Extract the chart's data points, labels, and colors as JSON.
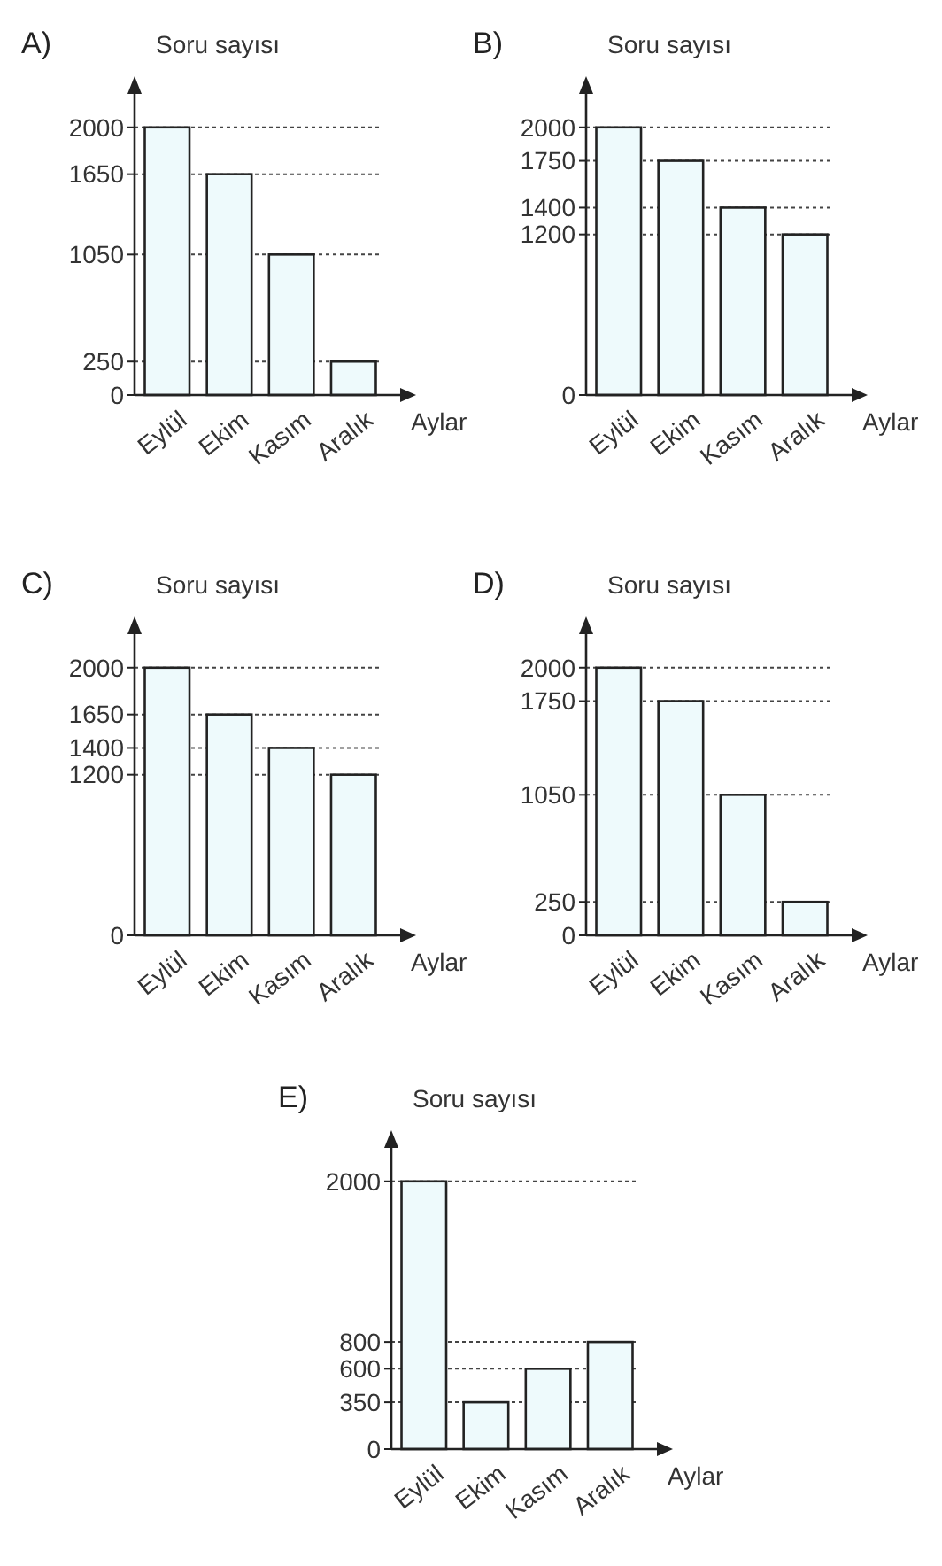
{
  "chart_data": [
    {
      "type": "bar",
      "title": "A)",
      "ylabel": "Soru sayısı",
      "xlabel": "Aylar",
      "categories": [
        "Eylül",
        "Ekim",
        "Kasım",
        "Aralık"
      ],
      "values": [
        2000,
        1650,
        1050,
        250
      ],
      "color": "#eefafc",
      "ylim": [
        0,
        2250
      ],
      "yticks": [
        0,
        250,
        1050,
        1650,
        2000
      ],
      "grid": "y"
    },
    {
      "type": "bar",
      "title": "B)",
      "ylabel": "Soru sayısı",
      "xlabel": "Aylar",
      "categories": [
        "Eylül",
        "Ekim",
        "Kasım",
        "Aralık"
      ],
      "values": [
        2000,
        1750,
        1400,
        1200
      ],
      "color": "#eefafc",
      "ylim": [
        0,
        2250
      ],
      "yticks": [
        0,
        1200,
        1400,
        1750,
        2000
      ],
      "grid": "y"
    },
    {
      "type": "bar",
      "title": "C)",
      "ylabel": "Soru sayısı",
      "xlabel": "Aylar",
      "categories": [
        "Eylül",
        "Ekim",
        "Kasım",
        "Aralık"
      ],
      "values": [
        2000,
        1650,
        1400,
        1200
      ],
      "color": "#eefafc",
      "ylim": [
        0,
        2250
      ],
      "yticks": [
        0,
        1200,
        1400,
        1650,
        2000
      ],
      "grid": "y"
    },
    {
      "type": "bar",
      "title": "D)",
      "ylabel": "Soru sayısı",
      "xlabel": "Aylar",
      "categories": [
        "Eylül",
        "Ekim",
        "Kasım",
        "Aralık"
      ],
      "values": [
        2000,
        1750,
        1050,
        250
      ],
      "color": "#eefafc",
      "ylim": [
        0,
        2250
      ],
      "yticks": [
        0,
        250,
        1050,
        1750,
        2000
      ],
      "grid": "y"
    },
    {
      "type": "bar",
      "title": "E)",
      "ylabel": "Soru sayısı",
      "xlabel": "Aylar",
      "categories": [
        "Eylül",
        "Ekim",
        "Kasım",
        "Aralık"
      ],
      "values": [
        2000,
        350,
        600,
        800
      ],
      "color": "#eefafc",
      "ylim": [
        0,
        2250
      ],
      "yticks": [
        0,
        350,
        600,
        800,
        2000
      ],
      "grid": "y"
    }
  ]
}
